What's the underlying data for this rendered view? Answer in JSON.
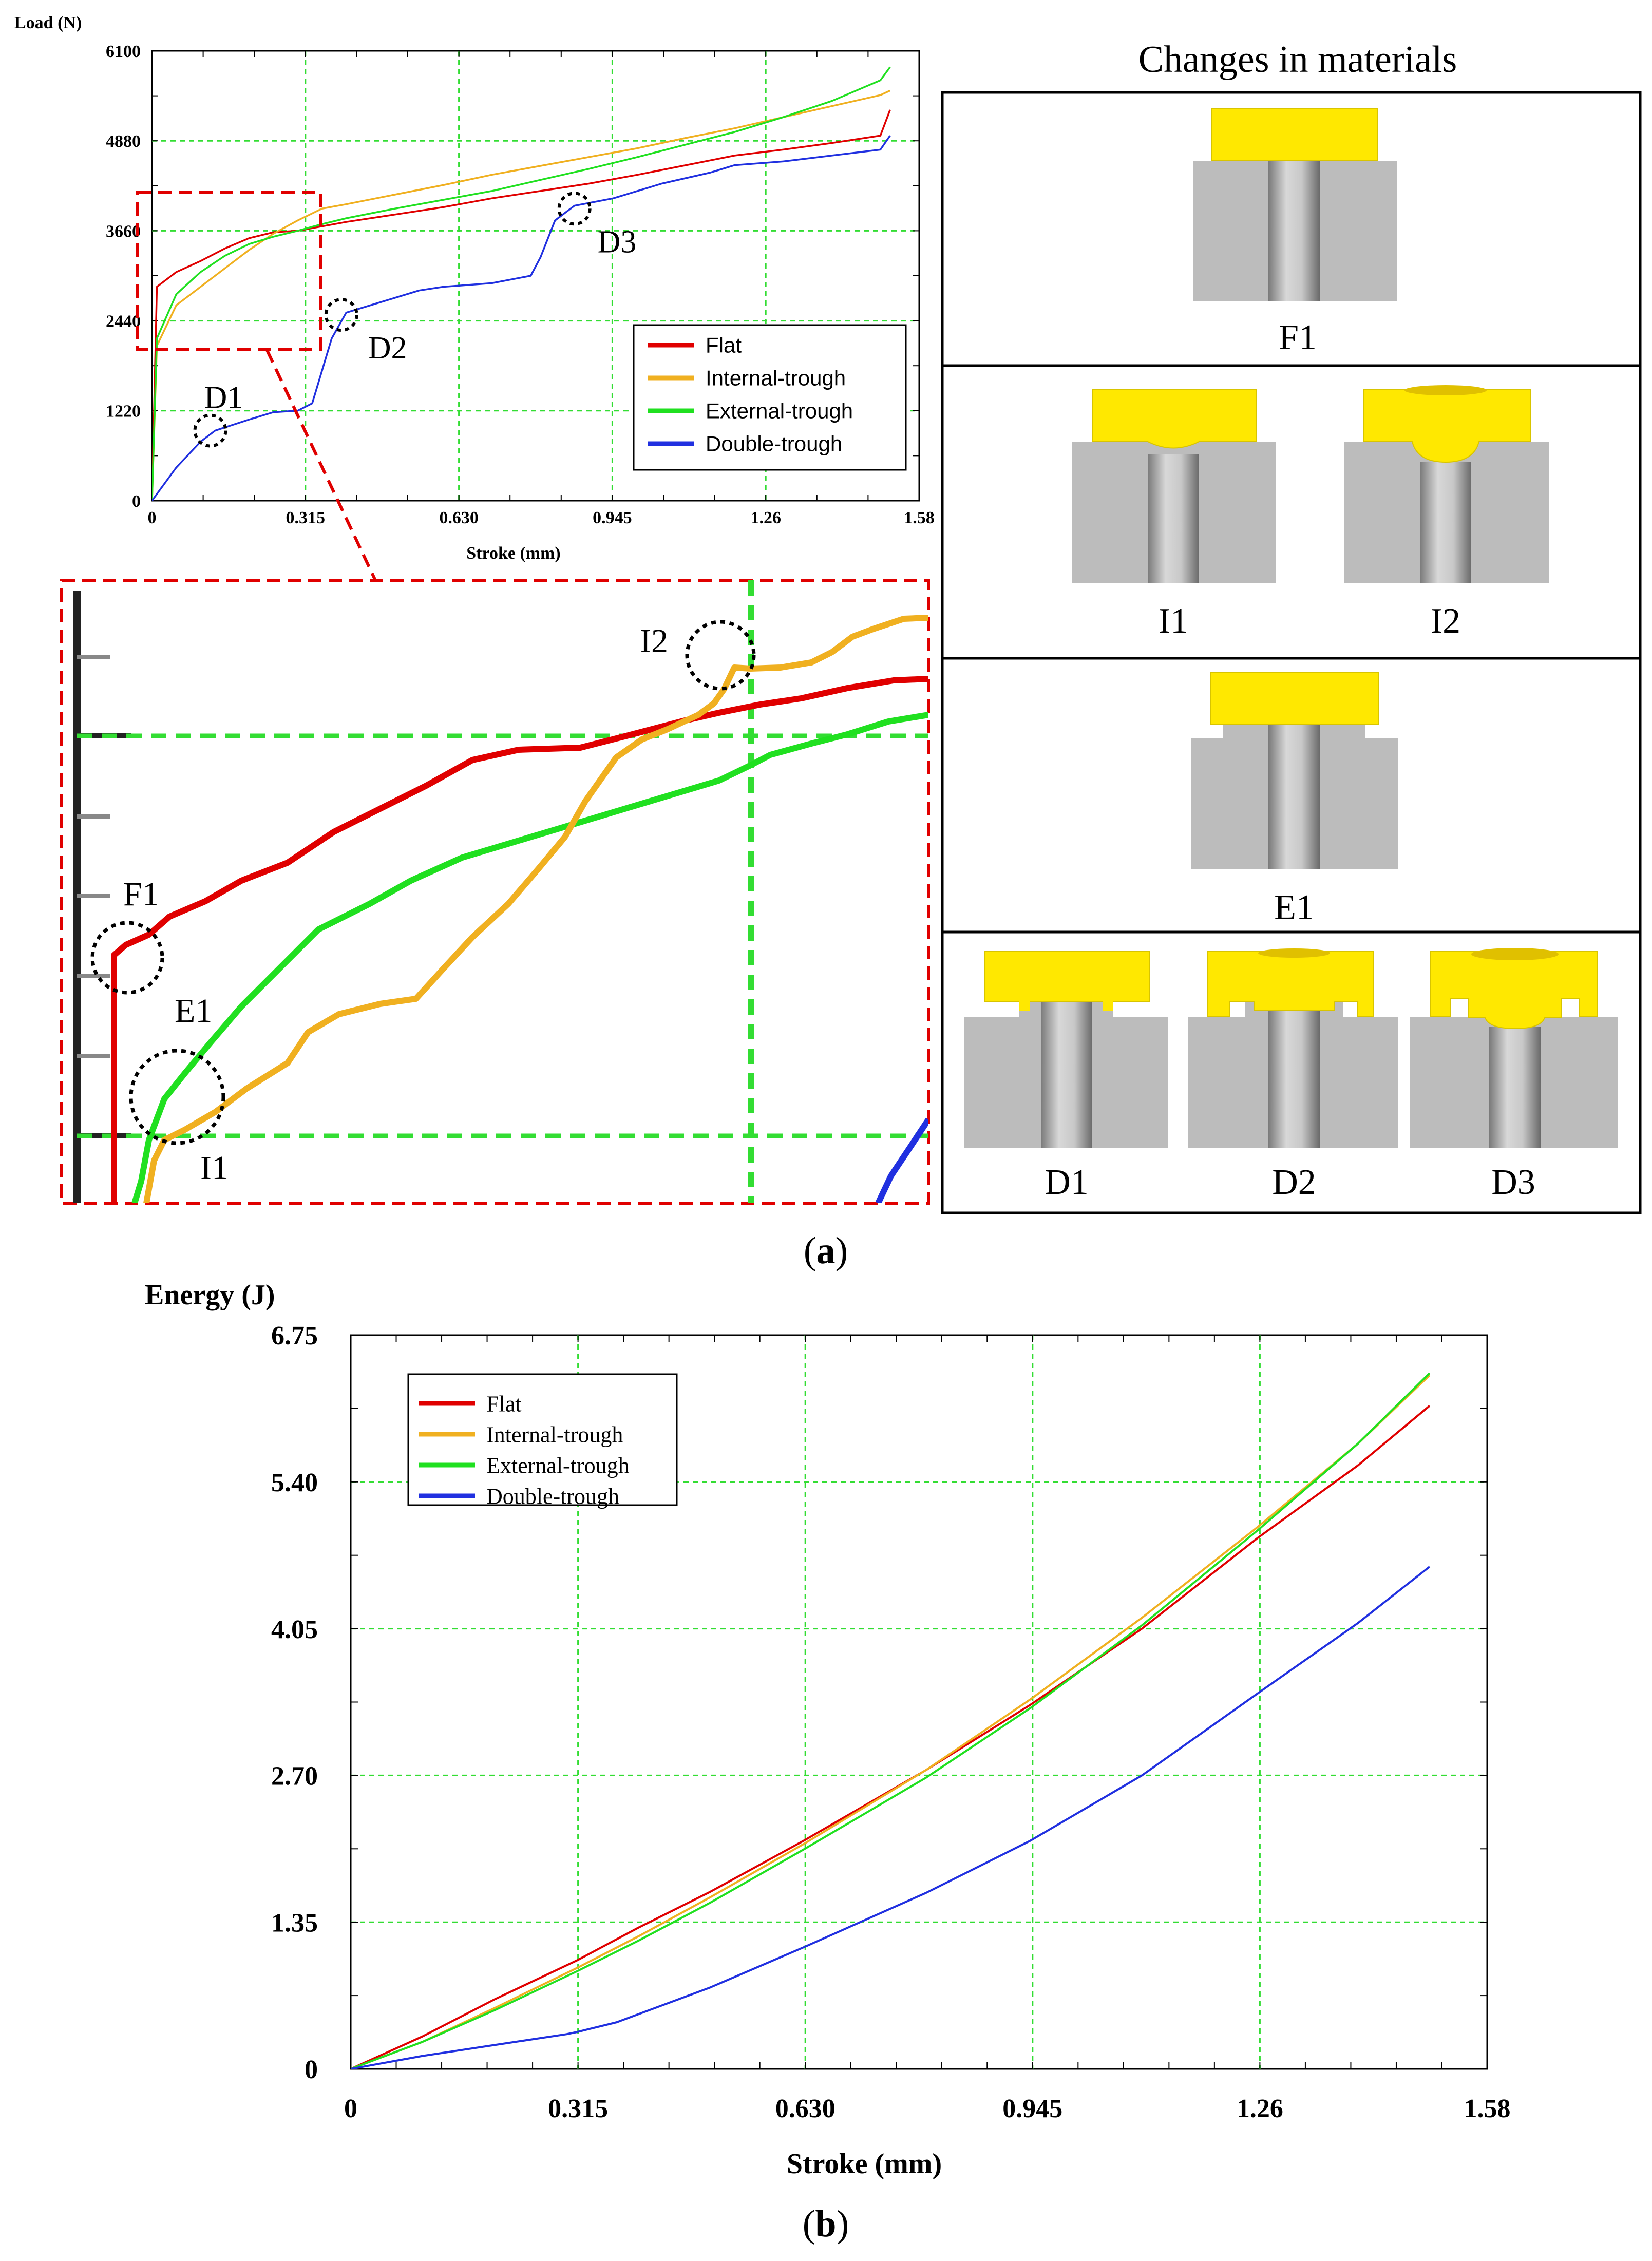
{
  "chart_data": [
    {
      "type": "line",
      "title": "",
      "xlabel": "Stroke (mm)",
      "ylabel": "Load (N)",
      "xlim": [
        0,
        1.58
      ],
      "ylim": [
        0,
        6100
      ],
      "x_ticks": [
        "0",
        "0.315",
        "0.630",
        "0.945",
        "1.26",
        "1.58"
      ],
      "y_ticks": [
        "0",
        "1220",
        "2440",
        "3660",
        "4880",
        "6100"
      ],
      "grid": true,
      "legend": "center-right",
      "series": [
        {
          "name": "Flat",
          "color": "#e00000",
          "points": [
            [
              0,
              0
            ],
            [
              0.01,
              2900
            ],
            [
              0.05,
              3100
            ],
            [
              0.1,
              3250
            ],
            [
              0.15,
              3420
            ],
            [
              0.2,
              3560
            ],
            [
              0.25,
              3640
            ],
            [
              0.3,
              3660
            ],
            [
              0.35,
              3720
            ],
            [
              0.4,
              3780
            ],
            [
              0.5,
              3880
            ],
            [
              0.6,
              3980
            ],
            [
              0.7,
              4100
            ],
            [
              0.8,
              4200
            ],
            [
              0.9,
              4300
            ],
            [
              1.0,
              4420
            ],
            [
              1.1,
              4550
            ],
            [
              1.2,
              4680
            ],
            [
              1.3,
              4760
            ],
            [
              1.4,
              4850
            ],
            [
              1.5,
              4950
            ],
            [
              1.52,
              5300
            ]
          ]
        },
        {
          "name": "Internal-trough",
          "color": "#f0b020",
          "points": [
            [
              0,
              0
            ],
            [
              0.01,
              2100
            ],
            [
              0.05,
              2650
            ],
            [
              0.1,
              2900
            ],
            [
              0.15,
              3150
            ],
            [
              0.2,
              3400
            ],
            [
              0.25,
              3620
            ],
            [
              0.3,
              3800
            ],
            [
              0.35,
              3960
            ],
            [
              0.4,
              4020
            ],
            [
              0.5,
              4150
            ],
            [
              0.6,
              4280
            ],
            [
              0.7,
              4420
            ],
            [
              0.8,
              4540
            ],
            [
              0.9,
              4660
            ],
            [
              1.0,
              4780
            ],
            [
              1.1,
              4920
            ],
            [
              1.2,
              5050
            ],
            [
              1.3,
              5200
            ],
            [
              1.4,
              5350
            ],
            [
              1.5,
              5500
            ],
            [
              1.52,
              5560
            ]
          ]
        },
        {
          "name": "External-trough",
          "color": "#20e020",
          "points": [
            [
              0,
              0
            ],
            [
              0.01,
              2200
            ],
            [
              0.05,
              2800
            ],
            [
              0.1,
              3100
            ],
            [
              0.15,
              3320
            ],
            [
              0.2,
              3480
            ],
            [
              0.25,
              3580
            ],
            [
              0.3,
              3660
            ],
            [
              0.35,
              3750
            ],
            [
              0.4,
              3830
            ],
            [
              0.5,
              3960
            ],
            [
              0.6,
              4080
            ],
            [
              0.7,
              4200
            ],
            [
              0.8,
              4350
            ],
            [
              0.9,
              4500
            ],
            [
              1.0,
              4660
            ],
            [
              1.1,
              4830
            ],
            [
              1.2,
              5000
            ],
            [
              1.3,
              5200
            ],
            [
              1.4,
              5420
            ],
            [
              1.5,
              5700
            ],
            [
              1.52,
              5880
            ]
          ]
        },
        {
          "name": "Double-trough",
          "color": "#2030e0",
          "points": [
            [
              0,
              0
            ],
            [
              0.05,
              450
            ],
            [
              0.1,
              800
            ],
            [
              0.13,
              950
            ],
            [
              0.2,
              1100
            ],
            [
              0.25,
              1200
            ],
            [
              0.3,
              1220
            ],
            [
              0.33,
              1320
            ],
            [
              0.37,
              2200
            ],
            [
              0.4,
              2550
            ],
            [
              0.45,
              2650
            ],
            [
              0.5,
              2750
            ],
            [
              0.55,
              2850
            ],
            [
              0.6,
              2900
            ],
            [
              0.7,
              2950
            ],
            [
              0.78,
              3050
            ],
            [
              0.8,
              3300
            ],
            [
              0.83,
              3800
            ],
            [
              0.87,
              4000
            ],
            [
              0.95,
              4100
            ],
            [
              1.05,
              4300
            ],
            [
              1.15,
              4450
            ],
            [
              1.2,
              4550
            ],
            [
              1.3,
              4600
            ],
            [
              1.4,
              4680
            ],
            [
              1.5,
              4760
            ],
            [
              1.52,
              4950
            ]
          ]
        }
      ],
      "annotations": [
        {
          "label": "D1",
          "x": 0.12,
          "y": 950
        },
        {
          "label": "D2",
          "x": 0.39,
          "y": 2520
        },
        {
          "label": "D3",
          "x": 0.87,
          "y": 3960
        }
      ]
    },
    {
      "type": "line",
      "title": "",
      "xlabel": "Stroke (mm)",
      "ylabel": "Energy (J)",
      "xlim": [
        0,
        1.58
      ],
      "ylim": [
        0,
        6.75
      ],
      "x_ticks": [
        "0",
        "0.315",
        "0.630",
        "0.945",
        "1.26",
        "1.58"
      ],
      "y_ticks": [
        "0",
        "1.35",
        "2.70",
        "4.05",
        "5.40",
        "6.75"
      ],
      "grid": true,
      "legend": "top-left",
      "series": [
        {
          "name": "Flat",
          "color": "#e00000",
          "points": [
            [
              0,
              0
            ],
            [
              0.1,
              0.3
            ],
            [
              0.2,
              0.64
            ],
            [
              0.315,
              1.0
            ],
            [
              0.4,
              1.3
            ],
            [
              0.5,
              1.63
            ],
            [
              0.63,
              2.1
            ],
            [
              0.8,
              2.75
            ],
            [
              0.945,
              3.35
            ],
            [
              1.1,
              4.05
            ],
            [
              1.26,
              4.88
            ],
            [
              1.4,
              5.55
            ],
            [
              1.5,
              6.1
            ]
          ]
        },
        {
          "name": "Internal-trough",
          "color": "#f0b020",
          "points": [
            [
              0,
              0
            ],
            [
              0.1,
              0.25
            ],
            [
              0.2,
              0.56
            ],
            [
              0.315,
              0.93
            ],
            [
              0.4,
              1.22
            ],
            [
              0.5,
              1.58
            ],
            [
              0.63,
              2.07
            ],
            [
              0.8,
              2.75
            ],
            [
              0.945,
              3.4
            ],
            [
              1.1,
              4.15
            ],
            [
              1.26,
              4.98
            ],
            [
              1.4,
              5.75
            ],
            [
              1.5,
              6.38
            ]
          ]
        },
        {
          "name": "External-trough",
          "color": "#20e020",
          "points": [
            [
              0,
              0
            ],
            [
              0.1,
              0.25
            ],
            [
              0.2,
              0.54
            ],
            [
              0.315,
              0.9
            ],
            [
              0.4,
              1.18
            ],
            [
              0.5,
              1.53
            ],
            [
              0.63,
              2.02
            ],
            [
              0.8,
              2.68
            ],
            [
              0.945,
              3.32
            ],
            [
              1.1,
              4.08
            ],
            [
              1.26,
              4.95
            ],
            [
              1.4,
              5.75
            ],
            [
              1.5,
              6.4
            ]
          ]
        },
        {
          "name": "Double-trough",
          "color": "#2030e0",
          "points": [
            [
              0,
              0
            ],
            [
              0.1,
              0.12
            ],
            [
              0.2,
              0.22
            ],
            [
              0.3,
              0.32
            ],
            [
              0.315,
              0.34
            ],
            [
              0.37,
              0.43
            ],
            [
              0.5,
              0.75
            ],
            [
              0.63,
              1.12
            ],
            [
              0.8,
              1.62
            ],
            [
              0.945,
              2.1
            ],
            [
              1.1,
              2.7
            ],
            [
              1.26,
              3.45
            ],
            [
              1.4,
              4.1
            ],
            [
              1.5,
              4.62
            ]
          ]
        }
      ]
    }
  ],
  "inset": {
    "labels": [
      "F1",
      "E1",
      "I1",
      "I2"
    ],
    "series_names": [
      "Flat",
      "Internal-trough",
      "External-trough",
      "Double-trough"
    ]
  },
  "materials_panel": {
    "title": "Changes in materials",
    "rows": [
      {
        "items": [
          "F1"
        ]
      },
      {
        "items": [
          "I1",
          "I2"
        ]
      },
      {
        "items": [
          "E1"
        ]
      },
      {
        "items": [
          "D1",
          "D2",
          "D3"
        ]
      }
    ]
  },
  "captions": {
    "a": "a",
    "b": "b"
  },
  "colors": {
    "flat": "#e00000",
    "internal": "#f0b020",
    "external": "#20e020",
    "double": "#2030e0",
    "grid": "#33dd33",
    "material": "#ffe800",
    "die": "#bcbcbc"
  }
}
